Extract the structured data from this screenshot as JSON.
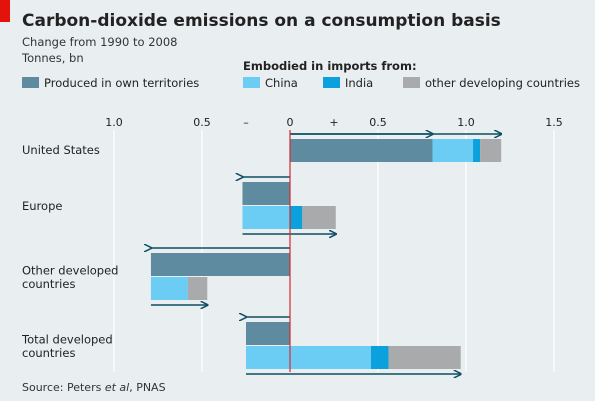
{
  "title": "Carbon-dioxide emissions on a consumption basis",
  "subtitle": "Change from 1990 to 2008",
  "unit": "Tonnes, bn",
  "source": {
    "prefix": "Source: Peters ",
    "etal": "et al",
    "suffix": ", PNAS"
  },
  "legend": {
    "own": "Produced in own territories",
    "imports_heading": "Embodied in imports from:",
    "china": "China",
    "india": "India",
    "other": "other developing countries"
  },
  "colors": {
    "background": "#e9eef0",
    "own": "#5f8ba1",
    "china": "#6ccdf4",
    "india": "#0ba1dd",
    "other": "#a8aaab",
    "arrow": "#0e4e63",
    "zero_line": "#d6282b",
    "accent_bar": "#e3120b",
    "grid": "#ffffff"
  },
  "chart_data": {
    "type": "bar",
    "orientation": "horizontal",
    "xlim": [
      -1.0,
      1.5
    ],
    "ticks": [
      {
        "value": -1.0,
        "label": "1.0"
      },
      {
        "value": -0.5,
        "label": "0.5"
      },
      {
        "value": 0,
        "label": "0"
      },
      {
        "value": 0.5,
        "label": "0.5"
      },
      {
        "value": 1.0,
        "label": "1.0"
      },
      {
        "value": 1.5,
        "label": "1.5"
      }
    ],
    "sign_labels": {
      "negative": "–",
      "positive": "+"
    },
    "categories": [
      {
        "name": "United States",
        "lines": [
          "United States"
        ],
        "own": 0.81,
        "china": 0.23,
        "india": 0.04,
        "other": 0.12,
        "net": 1.2,
        "layout": "single"
      },
      {
        "name": "Europe",
        "lines": [
          "Europe"
        ],
        "own": -0.27,
        "china": 0.27,
        "india": 0.07,
        "other": 0.19,
        "net": 0.26,
        "layout": "stacked"
      },
      {
        "name": "Other developed countries",
        "lines": [
          "Other developed",
          "countries"
        ],
        "own": -0.79,
        "china": 0.21,
        "india": 0.0,
        "other": 0.11,
        "net": -0.47,
        "layout": "stacked"
      },
      {
        "name": "Total developed countries",
        "lines": [
          "Total developed",
          "countries"
        ],
        "own": -0.25,
        "china": 0.71,
        "india": 0.1,
        "other": 0.41,
        "net": 0.97,
        "layout": "stacked"
      }
    ]
  }
}
